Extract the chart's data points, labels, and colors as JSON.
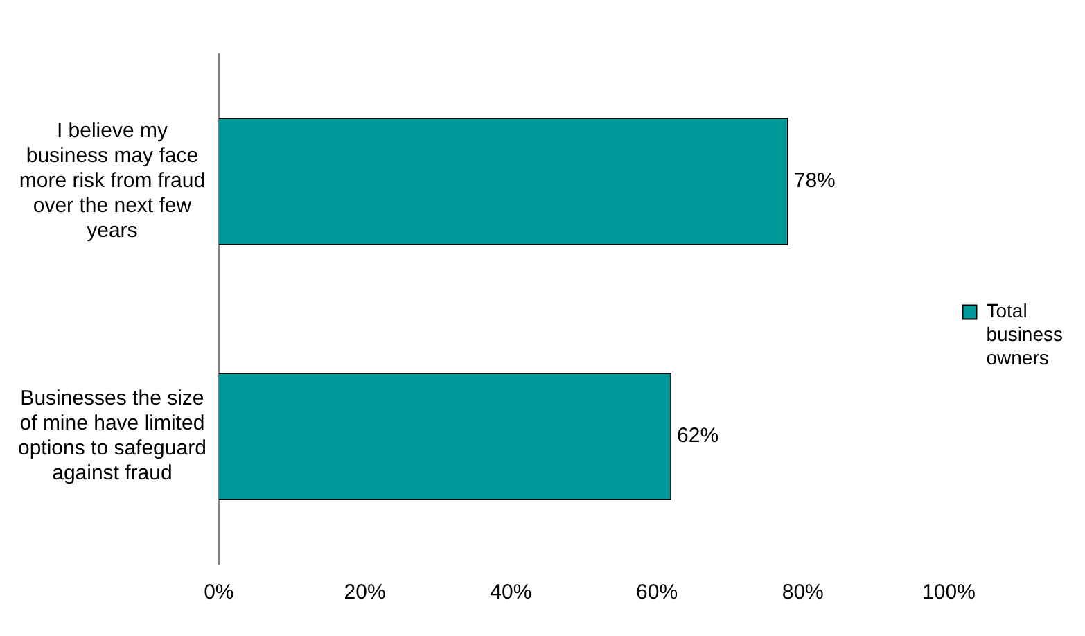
{
  "chart_data": {
    "type": "bar",
    "orientation": "horizontal",
    "categories": [
      "I believe my business may face more risk from fraud over the next few years",
      "Businesses the size of mine have limited options to safeguard against fraud"
    ],
    "series": [
      {
        "name": "Total business owners",
        "color": "#009999",
        "values": [
          78,
          62
        ]
      }
    ],
    "value_labels": [
      "78%",
      "62%"
    ],
    "xlim": [
      0,
      100
    ],
    "xticks": [
      {
        "value": 0,
        "label": "0%"
      },
      {
        "value": 20,
        "label": "20%"
      },
      {
        "value": 40,
        "label": "40%"
      },
      {
        "value": 60,
        "label": "60%"
      },
      {
        "value": 80,
        "label": "80%"
      },
      {
        "value": 100,
        "label": "100%"
      }
    ],
    "grid": false,
    "legend": "right"
  }
}
